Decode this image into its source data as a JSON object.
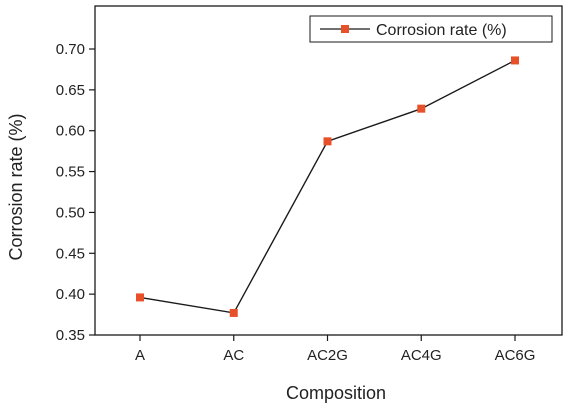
{
  "chart_data": {
    "type": "line",
    "categories": [
      "A",
      "AC",
      "AC2G",
      "AC4G",
      "AC6G"
    ],
    "series": [
      {
        "name": "Corrosion rate (%)",
        "values": [
          0.396,
          0.377,
          0.587,
          0.627,
          0.686
        ]
      }
    ],
    "xlabel": "Composition",
    "ylabel": "Corrosion rate (%)",
    "ylim": [
      0.35,
      0.7
    ],
    "yticks": [
      "0.35",
      "0.40",
      "0.45",
      "0.50",
      "0.55",
      "0.60",
      "0.65",
      "0.70"
    ],
    "legend_position": "top-right",
    "grid": false,
    "colors": {
      "line": "#1a1a1a",
      "marker": "#e8502a",
      "axis": "#1a1a1a"
    }
  }
}
